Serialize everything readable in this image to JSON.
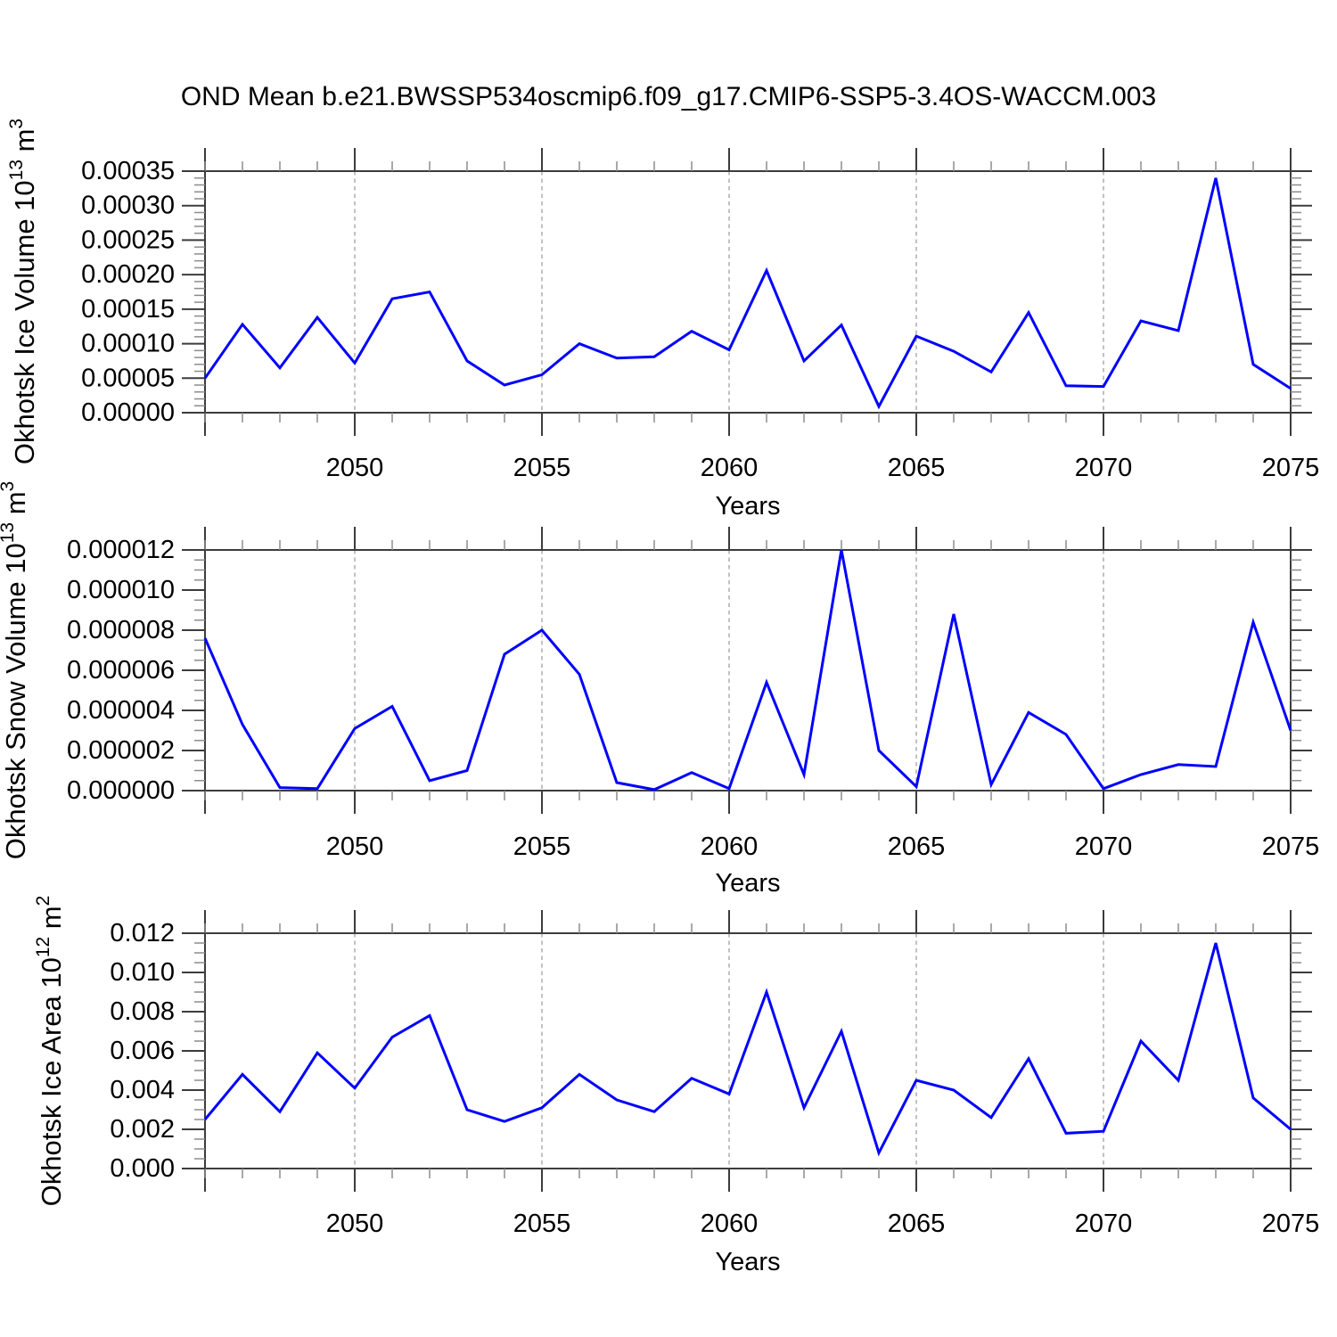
{
  "page": {
    "title": "OND Mean b.e21.BWSSP534oscmip6.f09_g17.CMIP6-SSP5-3.4OS-WACCM.003",
    "background": "#ffffff"
  },
  "chart_data": [
    {
      "type": "line",
      "name": "okhotsk-ice-volume",
      "xlabel": "Years",
      "ylabel": "Okhotsk Ice Volume 10^13 m^3",
      "ylabel_parts": {
        "prefix": "Okhotsk Ice Volume 10",
        "sup1": "13",
        "mid": " m",
        "sup2": "3"
      },
      "line_color": "#0000ff",
      "ylim": [
        0,
        0.00035
      ],
      "ytick_labels": [
        "0.00000",
        "0.00005",
        "0.00010",
        "0.00015",
        "0.00020",
        "0.00025",
        "0.00030",
        "0.00035"
      ],
      "xtick_labels": [
        "2050",
        "2055",
        "2060",
        "2065",
        "2070",
        "2075"
      ],
      "grid_years": [
        2050,
        2055,
        2060,
        2065,
        2070
      ],
      "x": [
        2046,
        2047,
        2048,
        2049,
        2050,
        2051,
        2052,
        2053,
        2054,
        2055,
        2056,
        2057,
        2058,
        2059,
        2060,
        2061,
        2062,
        2063,
        2064,
        2065,
        2066,
        2067,
        2068,
        2069,
        2070,
        2071,
        2072,
        2073,
        2074,
        2075
      ],
      "values": [
        5e-05,
        0.000128,
        6.5e-05,
        0.000138,
        7.2e-05,
        0.000165,
        0.000175,
        7.5e-05,
        4e-05,
        5.5e-05,
        0.0001,
        7.9e-05,
        8.1e-05,
        0.000118,
        9.1e-05,
        0.000206,
        7.5e-05,
        0.000127,
        9e-06,
        0.000111,
        8.9e-05,
        5.9e-05,
        0.000145,
        3.9e-05,
        3.8e-05,
        0.000133,
        0.000119,
        0.00034,
        7e-05,
        3.5e-05
      ]
    },
    {
      "type": "line",
      "name": "okhotsk-snow-volume",
      "xlabel": "Years",
      "ylabel": "Okhotsk Snow Volume 10^13 m^3",
      "ylabel_parts": {
        "prefix": "Okhotsk Snow Volume 10",
        "sup1": "13",
        "mid": " m",
        "sup2": "3"
      },
      "line_color": "#0000ff",
      "ylim": [
        0,
        1.2e-05
      ],
      "ytick_labels": [
        "0.000000",
        "0.000002",
        "0.000004",
        "0.000006",
        "0.000008",
        "0.000010",
        "0.000012"
      ],
      "xtick_labels": [
        "2050",
        "2055",
        "2060",
        "2065",
        "2070",
        "2075"
      ],
      "grid_years": [
        2050,
        2055,
        2060,
        2065,
        2070
      ],
      "x": [
        2046,
        2047,
        2048,
        2049,
        2050,
        2051,
        2052,
        2053,
        2054,
        2055,
        2056,
        2057,
        2058,
        2059,
        2060,
        2061,
        2062,
        2063,
        2064,
        2065,
        2066,
        2067,
        2068,
        2069,
        2070,
        2071,
        2072,
        2073,
        2074,
        2075
      ],
      "values": [
        7.6e-06,
        3.3e-06,
        1.5e-07,
        1e-07,
        3.1e-06,
        4.2e-06,
        5e-07,
        1e-06,
        6.8e-06,
        8e-06,
        5.8e-06,
        4e-07,
        5e-08,
        9e-07,
        1e-07,
        5.4e-06,
        8e-07,
        1.2e-05,
        2e-06,
        2e-07,
        8.8e-06,
        3e-07,
        3.9e-06,
        2.8e-06,
        1e-07,
        8e-07,
        1.3e-06,
        1.2e-06,
        8.4e-06,
        3e-06
      ]
    },
    {
      "type": "line",
      "name": "okhotsk-ice-area",
      "xlabel": "Years",
      "ylabel": "Okhotsk Ice Area 10^12 m^2",
      "ylabel_parts": {
        "prefix": "Okhotsk Ice Area 10",
        "sup1": "12",
        "mid": " m",
        "sup2": "2"
      },
      "line_color": "#0000ff",
      "ylim": [
        0,
        0.012
      ],
      "ytick_labels": [
        "0.000",
        "0.002",
        "0.004",
        "0.006",
        "0.008",
        "0.010",
        "0.012"
      ],
      "xtick_labels": [
        "2050",
        "2055",
        "2060",
        "2065",
        "2070",
        "2075"
      ],
      "grid_years": [
        2050,
        2055,
        2060,
        2065,
        2070
      ],
      "x": [
        2046,
        2047,
        2048,
        2049,
        2050,
        2051,
        2052,
        2053,
        2054,
        2055,
        2056,
        2057,
        2058,
        2059,
        2060,
        2061,
        2062,
        2063,
        2064,
        2065,
        2066,
        2067,
        2068,
        2069,
        2070,
        2071,
        2072,
        2073,
        2074,
        2075
      ],
      "values": [
        0.0025,
        0.0048,
        0.0029,
        0.0059,
        0.0041,
        0.0067,
        0.0078,
        0.003,
        0.0024,
        0.0031,
        0.0048,
        0.0035,
        0.0029,
        0.0046,
        0.0038,
        0.009,
        0.0031,
        0.007,
        0.0008,
        0.0045,
        0.004,
        0.0026,
        0.0056,
        0.0018,
        0.0019,
        0.0065,
        0.0045,
        0.0115,
        0.0036,
        0.002
      ]
    }
  ]
}
